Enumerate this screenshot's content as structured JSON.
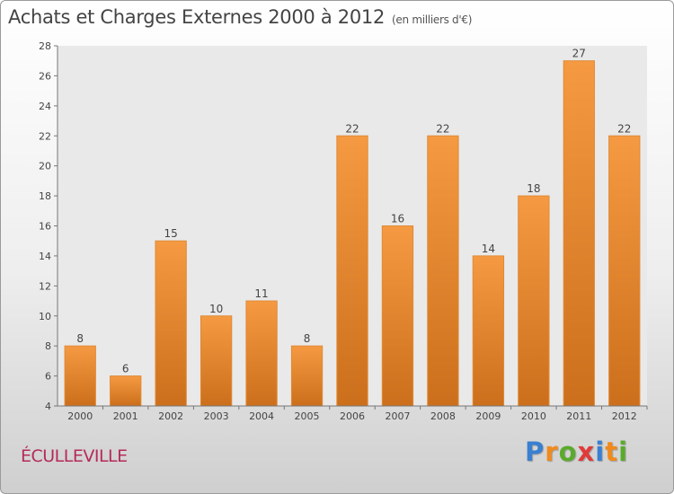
{
  "header": {
    "title": "Achats et Charges Externes 2000 à 2012",
    "subtitle": "(en milliers d'€)"
  },
  "footer": {
    "commune": "ÉCULLEVILLE",
    "logo_letters": [
      "P",
      "r",
      "o",
      "x",
      "i",
      "t",
      "i"
    ],
    "logo_colors": [
      "#3a7fd0",
      "#f08a1c",
      "#5aaa2c",
      "#e03a3a",
      "#3a7fd0",
      "#f08a1c",
      "#5aaa2c"
    ]
  },
  "chart_data": {
    "type": "bar",
    "title": "Achats et Charges Externes 2000 à 2012",
    "subtitle": "(en milliers d'€)",
    "categories": [
      "2000",
      "2001",
      "2002",
      "2003",
      "2004",
      "2005",
      "2006",
      "2007",
      "2008",
      "2009",
      "2010",
      "2011",
      "2012"
    ],
    "values": [
      8,
      6,
      15,
      10,
      11,
      8,
      22,
      16,
      22,
      14,
      18,
      27,
      22
    ],
    "ylim": [
      4,
      28
    ],
    "yticks": [
      4,
      6,
      8,
      10,
      12,
      14,
      16,
      18,
      20,
      22,
      24,
      26,
      28
    ],
    "grid": false,
    "legend": "none",
    "bar_color": "#f59a42",
    "bar_color_dark": "#cc6f1c"
  }
}
